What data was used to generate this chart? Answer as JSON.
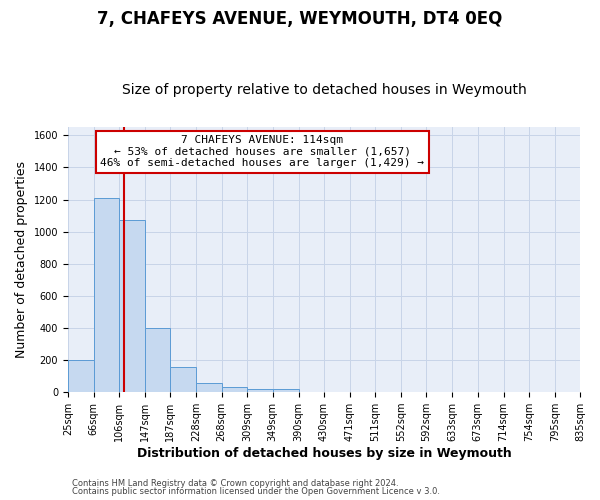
{
  "title": "7, CHAFEYS AVENUE, WEYMOUTH, DT4 0EQ",
  "subtitle": "Size of property relative to detached houses in Weymouth",
  "xlabel": "Distribution of detached houses by size in Weymouth",
  "ylabel": "Number of detached properties",
  "footnote1": "Contains HM Land Registry data © Crown copyright and database right 2024.",
  "footnote2": "Contains public sector information licensed under the Open Government Licence v 3.0.",
  "bin_edges": [
    25,
    66,
    106,
    147,
    187,
    228,
    268,
    309,
    349,
    390,
    430,
    471,
    511,
    552,
    592,
    633,
    673,
    714,
    754,
    795,
    835
  ],
  "bin_labels": [
    "25sqm",
    "66sqm",
    "106sqm",
    "147sqm",
    "187sqm",
    "228sqm",
    "268sqm",
    "309sqm",
    "349sqm",
    "390sqm",
    "430sqm",
    "471sqm",
    "511sqm",
    "552sqm",
    "592sqm",
    "633sqm",
    "673sqm",
    "714sqm",
    "754sqm",
    "795sqm",
    "835sqm"
  ],
  "bar_heights": [
    200,
    1210,
    1070,
    400,
    160,
    55,
    30,
    20,
    20,
    0,
    0,
    0,
    0,
    0,
    0,
    0,
    0,
    0,
    0,
    0
  ],
  "bar_color": "#c6d9f0",
  "bar_edge_color": "#5b9bd5",
  "property_size": 114,
  "smaller_pct": 53,
  "smaller_count": 1657,
  "larger_pct": 46,
  "larger_count": 1429,
  "vline_color": "#cc0000",
  "annotation_box_edge": "#cc0000",
  "ylim": [
    0,
    1650
  ],
  "yticks": [
    0,
    200,
    400,
    600,
    800,
    1000,
    1200,
    1400,
    1600
  ],
  "grid_color": "#c8d4e8",
  "bg_color": "#e8eef8",
  "title_fontsize": 12,
  "subtitle_fontsize": 10,
  "label_fontsize": 9,
  "tick_fontsize": 7,
  "annot_fontsize": 8
}
